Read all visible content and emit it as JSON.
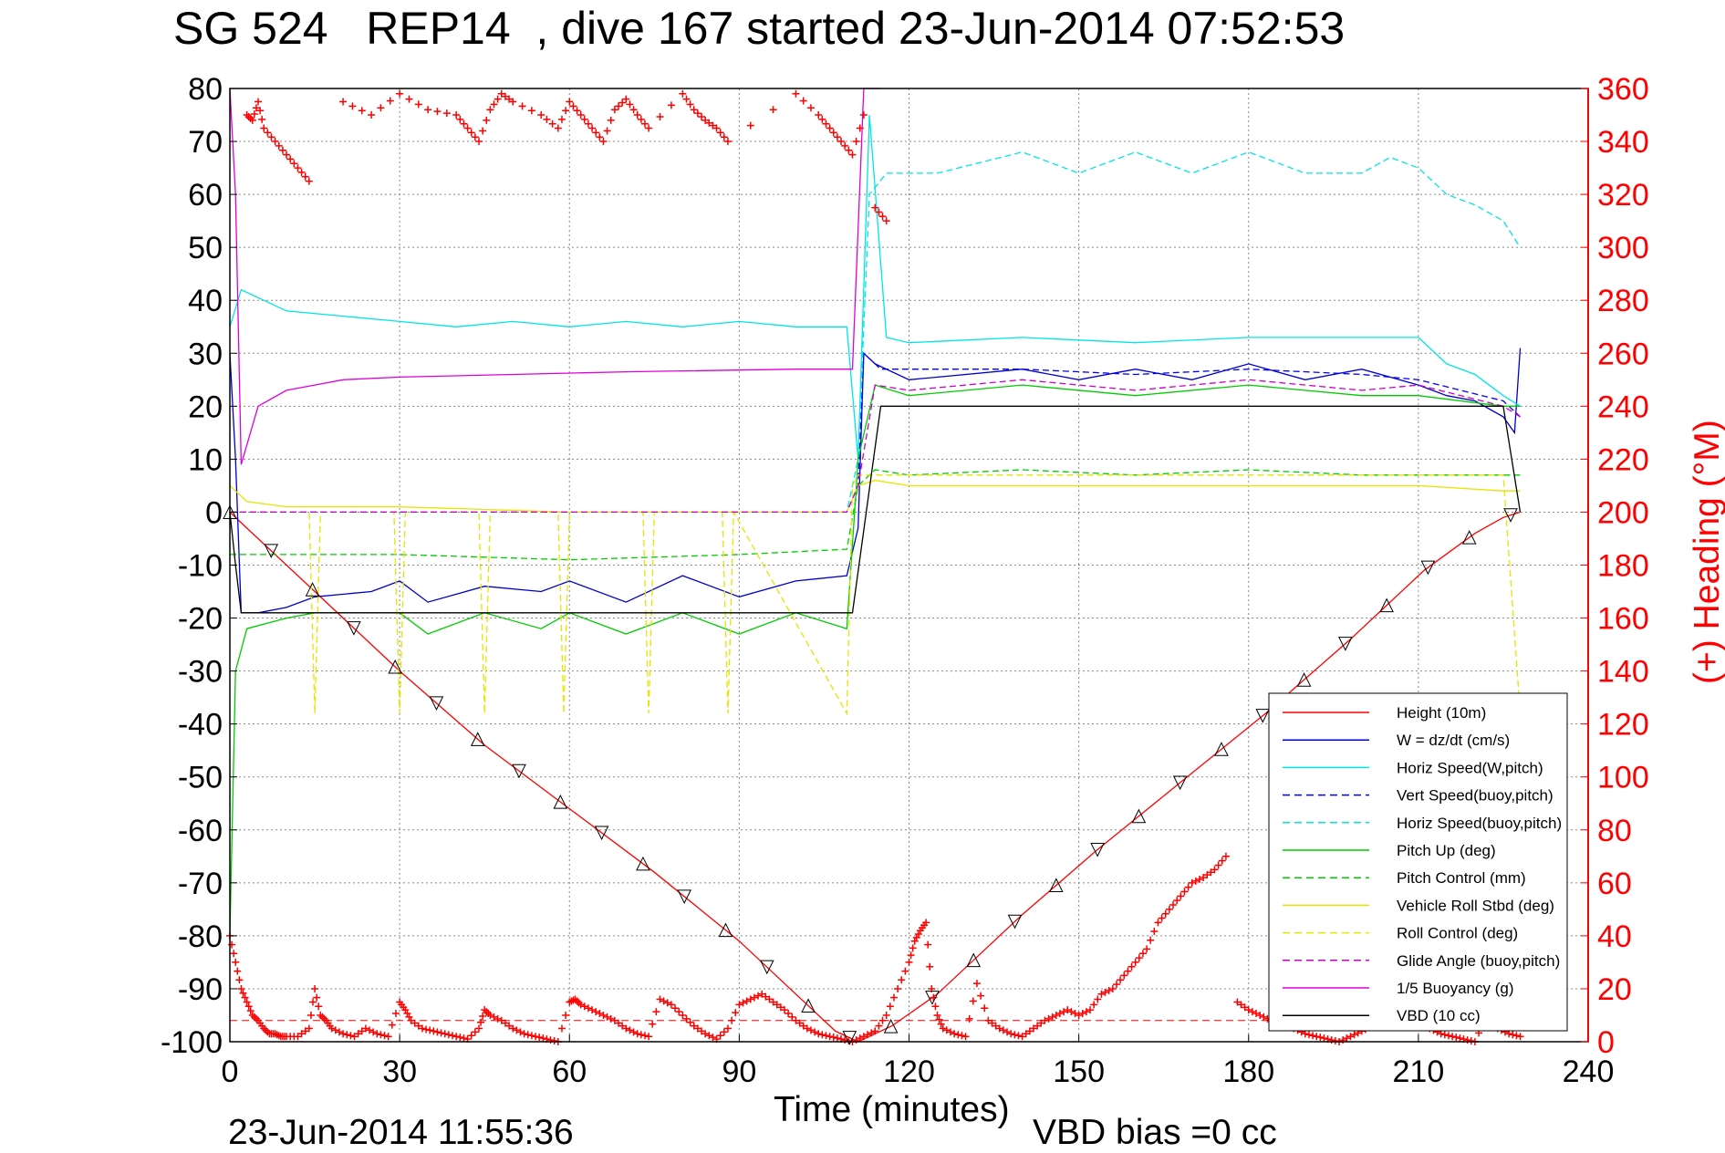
{
  "title": "SG 524   REP14  , dive 167 started 23-Jun-2014 07:52:53",
  "footer_timestamp": "23-Jun-2014 11:55:36",
  "footer_bias": "VBD bias =0 cc",
  "chart_data": {
    "type": "line",
    "xlabel": "Time (minutes)",
    "ylabel": "",
    "y2label": "(+) Heading (°M)",
    "xlim": [
      0,
      240
    ],
    "ylim": [
      -100,
      80
    ],
    "y2lim": [
      0,
      360
    ],
    "xticks": [
      0,
      30,
      60,
      90,
      120,
      150,
      180,
      210,
      240
    ],
    "yticks": [
      80,
      70,
      60,
      50,
      40,
      30,
      20,
      10,
      0,
      -10,
      -20,
      -30,
      -40,
      -50,
      -60,
      -70,
      -80,
      -90,
      -100
    ],
    "y2ticks": [
      360,
      340,
      320,
      300,
      280,
      260,
      240,
      220,
      200,
      180,
      160,
      140,
      120,
      100,
      80,
      60,
      40,
      20,
      0
    ],
    "grid": true,
    "legend_position": "lower-right",
    "colors": {
      "height": "#ff0000",
      "w": "#0000cc",
      "horiz_speed_w_pitch": "#00e5e5",
      "vert_speed_buoy": "#0000ff",
      "horiz_speed_buoy": "#00e5e5",
      "pitch_up": "#00cc00",
      "pitch_control": "#00cc00",
      "roll": "#e5e500",
      "roll_control": "#e5e500",
      "glide_angle": "#cc00cc",
      "buoyancy": "#dd00dd",
      "vbd": "#000000",
      "heading": "#ff0000"
    },
    "series": [
      {
        "name": "Height (10m)",
        "style": "solid",
        "color": "#ff0000",
        "x": [
          0,
          2,
          15,
          30,
          45,
          60,
          75,
          90,
          100,
          107,
          111,
          113,
          117,
          125,
          133,
          140,
          153,
          168,
          183,
          198,
          211,
          220,
          225,
          228
        ],
        "y": [
          0,
          -2,
          -15,
          -30,
          -44,
          -56,
          -68,
          -81,
          -91,
          -98,
          -100,
          -99,
          -97,
          -91,
          -83,
          -76,
          -64,
          -51,
          -38,
          -24,
          -11,
          -4,
          -1,
          0
        ]
      },
      {
        "name": "W = dz/dt (cm/s)",
        "style": "solid",
        "color": "#0000cc",
        "x": [
          0,
          1,
          2,
          5,
          10,
          15,
          25,
          30,
          35,
          45,
          55,
          60,
          70,
          80,
          90,
          100,
          109,
          111,
          112,
          114,
          120,
          140,
          150,
          160,
          170,
          180,
          190,
          200,
          210,
          215,
          220,
          225,
          227,
          228
        ],
        "y": [
          30,
          10,
          -19,
          -19,
          -18,
          -16,
          -15,
          -13,
          -17,
          -14,
          -15,
          -13,
          -17,
          -12,
          -16,
          -13,
          -12,
          -3,
          30,
          28,
          25,
          27,
          25,
          27,
          25,
          28,
          25,
          27,
          24,
          22,
          21,
          18,
          15,
          31
        ]
      },
      {
        "name": "Horiz Speed(W,pitch)",
        "style": "solid",
        "color": "#00e5e5",
        "x": [
          0,
          2,
          10,
          20,
          30,
          40,
          50,
          60,
          70,
          80,
          90,
          100,
          109,
          111,
          113,
          116,
          120,
          140,
          160,
          180,
          200,
          210,
          215,
          220,
          225,
          228
        ],
        "y": [
          35,
          42,
          38,
          37,
          36,
          35,
          36,
          35,
          36,
          35,
          36,
          35,
          35,
          10,
          75,
          33,
          32,
          33,
          32,
          33,
          33,
          33,
          28,
          26,
          22,
          20
        ]
      },
      {
        "name": "Vert Speed(buoy,pitch)",
        "style": "dashed",
        "color": "#0000ff",
        "x": [
          0,
          2,
          10,
          30,
          60,
          90,
          109,
          111,
          112,
          115,
          140,
          160,
          180,
          200,
          210,
          225,
          228
        ],
        "y": [
          0,
          0,
          0,
          0,
          0,
          0,
          0,
          5,
          30,
          27,
          27,
          26,
          27,
          26,
          25,
          21,
          18
        ]
      },
      {
        "name": "Horiz Speed(buoy,pitch)",
        "style": "dashed",
        "color": "#00e5e5",
        "x": [
          0,
          109,
          111,
          113,
          116,
          125,
          140,
          150,
          160,
          170,
          180,
          190,
          200,
          205,
          210,
          215,
          220,
          225,
          228
        ],
        "y": [
          0,
          0,
          10,
          60,
          64,
          64,
          68,
          64,
          68,
          64,
          68,
          64,
          64,
          67,
          65,
          60,
          58,
          55,
          50
        ]
      },
      {
        "name": "Pitch Up (deg)",
        "style": "solid",
        "color": "#00cc00",
        "x": [
          0,
          1,
          3,
          10,
          15,
          30,
          35,
          45,
          55,
          60,
          70,
          80,
          90,
          100,
          109,
          111,
          114,
          120,
          140,
          160,
          180,
          200,
          210,
          225,
          228
        ],
        "y": [
          -80,
          -30,
          -22,
          -20,
          -19,
          -19,
          -23,
          -19,
          -22,
          -19,
          -23,
          -19,
          -23,
          -19,
          -22,
          10,
          24,
          22,
          24,
          22,
          24,
          22,
          22,
          20,
          20
        ]
      },
      {
        "name": "Pitch Control (mm)",
        "style": "dashed",
        "color": "#00cc00",
        "x": [
          0,
          2,
          10,
          30,
          60,
          90,
          109,
          111,
          114,
          120,
          140,
          160,
          180,
          200,
          210,
          225,
          228
        ],
        "y": [
          -8,
          -8,
          -8,
          -8,
          -9,
          -8,
          -7,
          5,
          8,
          7,
          8,
          7,
          8,
          7,
          7,
          7,
          7
        ]
      },
      {
        "name": "Vehicle Roll Stbd (deg)",
        "style": "solid",
        "color": "#e5e500",
        "x": [
          0,
          3,
          10,
          30,
          60,
          90,
          109,
          111,
          114,
          120,
          140,
          160,
          180,
          200,
          210,
          225,
          228
        ],
        "y": [
          5,
          2,
          1,
          1,
          0,
          0,
          0,
          5,
          6,
          5,
          5,
          5,
          5,
          5,
          5,
          4,
          4
        ]
      },
      {
        "name": "Roll Control (deg)",
        "style": "dashed",
        "color": "#e5e500",
        "x": [
          0,
          14,
          15,
          16,
          29,
          30,
          31,
          44,
          45,
          46,
          58,
          59,
          60,
          73,
          74,
          75,
          87,
          88,
          89,
          109,
          110,
          111,
          140,
          160,
          180,
          200,
          210,
          225,
          228
        ],
        "y": [
          0,
          0,
          -38,
          0,
          0,
          -38,
          0,
          0,
          -38,
          0,
          0,
          -38,
          0,
          0,
          -38,
          0,
          0,
          -38,
          0,
          -38,
          5,
          7,
          7,
          7,
          7,
          7,
          7,
          7,
          -38
        ]
      },
      {
        "name": "Glide Angle (buoy,pitch)",
        "style": "dashed",
        "color": "#cc00cc",
        "x": [
          0,
          109,
          111,
          114,
          120,
          140,
          160,
          180,
          200,
          210,
          225,
          228
        ],
        "y": [
          0,
          0,
          5,
          24,
          23,
          25,
          23,
          25,
          23,
          24,
          20,
          18
        ]
      },
      {
        "name": "1/5 Buoyancy (g)",
        "style": "solid",
        "color": "#dd00dd",
        "x": [
          0,
          1,
          2,
          5,
          10,
          15,
          20,
          30,
          50,
          70,
          100,
          109,
          110,
          112,
          115
        ],
        "y": [
          80,
          60,
          9,
          20,
          23,
          24,
          25,
          25.5,
          26,
          26.5,
          27,
          27,
          27,
          80,
          80
        ]
      },
      {
        "name": "VBD (10 cc)",
        "style": "solid",
        "color": "#000000",
        "x": [
          0,
          1,
          2,
          109,
          110,
          115,
          125,
          140,
          180,
          210,
          225,
          228
        ],
        "y": [
          0,
          -10,
          -19,
          -19,
          -19,
          20,
          20,
          20,
          20,
          20,
          20,
          0
        ]
      }
    ],
    "heading_series": {
      "name": "Heading",
      "marker": "+",
      "color": "#ff0000",
      "x": [
        0,
        1,
        2,
        3,
        4,
        5,
        6,
        7,
        8,
        9,
        10,
        12,
        14,
        15,
        16,
        17,
        18,
        20,
        22,
        24,
        26,
        28,
        30,
        31,
        32,
        34,
        36,
        38,
        40,
        42,
        44,
        45,
        46,
        48,
        50,
        52,
        54,
        56,
        58,
        60,
        61,
        62,
        64,
        66,
        68,
        70,
        72,
        74,
        76,
        78,
        80,
        82,
        84,
        86,
        88,
        90,
        92,
        94,
        96,
        98,
        100,
        102,
        104,
        106,
        108,
        110,
        112,
        114,
        116,
        118,
        120,
        121,
        122,
        123,
        124,
        125,
        126,
        128,
        130,
        132,
        134,
        136,
        138,
        140,
        142,
        144,
        146,
        148,
        150,
        152,
        154,
        156,
        158,
        160,
        162,
        164,
        166,
        168,
        170,
        172,
        174,
        176,
        178,
        180,
        182,
        184,
        186,
        188,
        190,
        192,
        194,
        196,
        198,
        200,
        202,
        204,
        206,
        208,
        210,
        212,
        214,
        216,
        218,
        220,
        222,
        224,
        226,
        228
      ],
      "y": [
        40,
        30,
        20,
        15,
        10,
        8,
        5,
        3,
        3,
        2,
        2,
        2,
        5,
        20,
        10,
        8,
        5,
        3,
        2,
        5,
        3,
        2,
        15,
        12,
        8,
        5,
        4,
        3,
        2,
        1,
        5,
        12,
        10,
        8,
        5,
        3,
        2,
        1,
        0,
        15,
        16,
        14,
        12,
        10,
        8,
        5,
        3,
        2,
        16,
        14,
        10,
        6,
        3,
        1,
        5,
        14,
        16,
        18,
        15,
        12,
        8,
        5,
        3,
        2,
        1,
        0,
        2,
        4,
        10,
        20,
        30,
        38,
        42,
        45,
        20,
        10,
        5,
        3,
        2,
        22,
        8,
        5,
        3,
        2,
        5,
        8,
        10,
        12,
        10,
        12,
        18,
        20,
        25,
        30,
        35,
        45,
        50,
        55,
        60,
        62,
        65,
        70,
        15,
        12,
        10,
        8,
        6,
        5,
        3,
        2,
        1,
        0,
        2,
        4,
        6,
        8,
        10,
        8,
        6,
        5,
        3,
        2,
        1,
        0,
        10,
        5,
        3,
        2
      ]
    },
    "heading_top_series": {
      "x": [
        3,
        4,
        5,
        6,
        8,
        10,
        12,
        14,
        20,
        25,
        30,
        35,
        40,
        42,
        44,
        46,
        48,
        50,
        55,
        58,
        60,
        62,
        64,
        66,
        68,
        70,
        72,
        74,
        80,
        82,
        84,
        86,
        88,
        100,
        104,
        106,
        108,
        110,
        112,
        114,
        116
      ],
      "y": [
        350,
        348,
        355,
        345,
        340,
        335,
        330,
        325,
        355,
        350,
        358,
        352,
        350,
        345,
        340,
        352,
        358,
        355,
        350,
        345,
        355,
        350,
        345,
        340,
        352,
        356,
        350,
        345,
        358,
        352,
        348,
        345,
        340,
        358,
        350,
        345,
        340,
        335,
        350,
        315,
        310
      ]
    }
  },
  "legend": {
    "items": [
      {
        "label": "Height (10m)",
        "color": "#ff0000",
        "dash": false
      },
      {
        "label": "W = dz/dt (cm/s)",
        "color": "#0000cc",
        "dash": false
      },
      {
        "label": "Horiz Speed(W,pitch)",
        "color": "#00e5e5",
        "dash": false
      },
      {
        "label": "Vert Speed(buoy,pitch)",
        "color": "#0000ff",
        "dash": true
      },
      {
        "label": "Horiz Speed(buoy,pitch)",
        "color": "#00e5e5",
        "dash": true
      },
      {
        "label": "Pitch Up (deg)",
        "color": "#00cc00",
        "dash": false
      },
      {
        "label": "Pitch Control (mm)",
        "color": "#00cc00",
        "dash": true
      },
      {
        "label": "Vehicle Roll Stbd (deg)",
        "color": "#e5e500",
        "dash": false
      },
      {
        "label": "Roll Control (deg)",
        "color": "#e5e500",
        "dash": true
      },
      {
        "label": "Glide Angle (buoy,pitch)",
        "color": "#cc00cc",
        "dash": true
      },
      {
        "label": "1/5 Buoyancy (g)",
        "color": "#dd00dd",
        "dash": false
      },
      {
        "label": "VBD (10 cc)",
        "color": "#000000",
        "dash": false
      }
    ]
  }
}
